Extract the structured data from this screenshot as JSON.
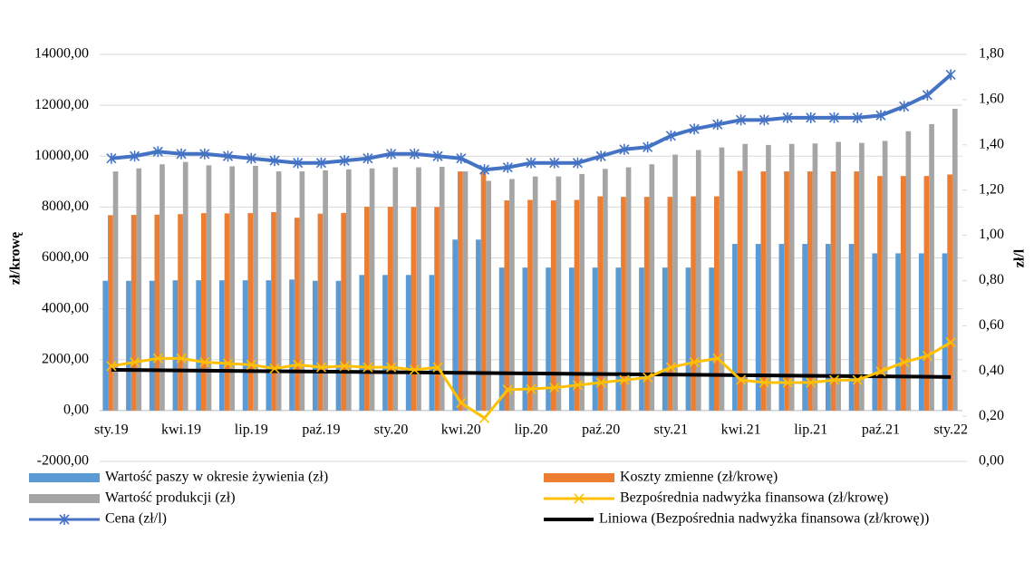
{
  "chart_data": {
    "type": "bar",
    "categories": [
      "sty.19",
      null,
      null,
      "kwi.19",
      null,
      null,
      "lip.19",
      null,
      null,
      "paź.19",
      null,
      null,
      "sty.20",
      null,
      null,
      "kwi.20",
      null,
      null,
      "lip.20",
      null,
      null,
      "paź.20",
      null,
      null,
      "sty.21",
      null,
      null,
      "kwi.21",
      null,
      null,
      "lip.21",
      null,
      null,
      "paź.21",
      null,
      null,
      "sty.22"
    ],
    "ylabel": "zł/krowę",
    "y2label": "zł/l",
    "ylim": [
      -2000,
      14000
    ],
    "yticks": [
      {
        "value": -2000,
        "label": "-2000,00"
      },
      {
        "value": 0,
        "label": "0,00"
      },
      {
        "value": 2000,
        "label": "2000,00"
      },
      {
        "value": 4000,
        "label": "4000,00"
      },
      {
        "value": 6000,
        "label": "6000,00"
      },
      {
        "value": 8000,
        "label": "8000,00"
      },
      {
        "value": 10000,
        "label": "10000,00"
      },
      {
        "value": 12000,
        "label": "12000,00"
      },
      {
        "value": 14000,
        "label": "14000,00"
      }
    ],
    "y2lim": [
      0,
      1.8
    ],
    "y2ticks": [
      {
        "value": 0,
        "label": "0,00"
      },
      {
        "value": 0.2,
        "label": "0,20"
      },
      {
        "value": 0.4,
        "label": "0,40"
      },
      {
        "value": 0.6,
        "label": "0,60"
      },
      {
        "value": 0.8,
        "label": "0,80"
      },
      {
        "value": 1.0,
        "label": "1,00"
      },
      {
        "value": 1.2,
        "label": "1,20"
      },
      {
        "value": 1.4,
        "label": "1,40"
      },
      {
        "value": 1.6,
        "label": "1,60"
      },
      {
        "value": 1.8,
        "label": "1,80"
      }
    ],
    "grid": true,
    "series": [
      {
        "name": "Wartość paszy w okresie żywienia (zł)",
        "color": "#5b9bd5",
        "kind": "bar",
        "values": [
          5100,
          5100,
          5100,
          5120,
          5120,
          5120,
          5120,
          5120,
          5150,
          5100,
          5100,
          5330,
          5330,
          5330,
          5330,
          6720,
          6720,
          5620,
          5620,
          5620,
          5620,
          5620,
          5620,
          5620,
          5620,
          5620,
          5620,
          6550,
          6550,
          6550,
          6550,
          6550,
          6550,
          6180,
          6180,
          6180,
          6180
        ]
      },
      {
        "name": "Koszty zmienne (zł/krowę)",
        "color": "#ed7d31",
        "kind": "bar",
        "values": [
          7680,
          7690,
          7700,
          7720,
          7760,
          7750,
          7760,
          7800,
          7580,
          7740,
          7770,
          8010,
          8010,
          8000,
          8000,
          9400,
          9400,
          8260,
          8280,
          8260,
          8280,
          8420,
          8400,
          8400,
          8400,
          8420,
          8420,
          9420,
          9400,
          9400,
          9400,
          9400,
          9400,
          9220,
          9220,
          9220,
          9280
        ]
      },
      {
        "name": "Wartość produkcji (zł)",
        "color": "#a5a5a5",
        "kind": "bar",
        "values": [
          9400,
          9520,
          9680,
          9770,
          9640,
          9600,
          9620,
          9400,
          9400,
          9440,
          9480,
          9520,
          9560,
          9560,
          9580,
          9400,
          9030,
          9100,
          9200,
          9200,
          9300,
          9500,
          9560,
          9680,
          10060,
          10240,
          10340,
          10480,
          10440,
          10480,
          10500,
          10560,
          10520,
          10600,
          10980,
          11260,
          11860
        ]
      },
      {
        "name": "Bezpośrednia nadwyżka finansowa (zł/krowę)",
        "color": "#ffc000",
        "kind": "line",
        "marker": "x",
        "values": [
          1750,
          1900,
          2050,
          2050,
          1900,
          1850,
          1800,
          1650,
          1800,
          1700,
          1750,
          1700,
          1700,
          1600,
          1700,
          300,
          -300,
          820,
          850,
          900,
          1000,
          1100,
          1200,
          1300,
          1700,
          1900,
          2050,
          1200,
          1100,
          1100,
          1100,
          1200,
          1200,
          1540,
          1900,
          2150,
          2680
        ]
      },
      {
        "name": "Cena (zł/l)",
        "color": "#4472c4",
        "kind": "line",
        "marker": "star",
        "axis": "y2",
        "values": [
          1.34,
          1.35,
          1.37,
          1.36,
          1.36,
          1.35,
          1.34,
          1.33,
          1.32,
          1.32,
          1.33,
          1.34,
          1.36,
          1.36,
          1.35,
          1.34,
          1.29,
          1.3,
          1.32,
          1.32,
          1.32,
          1.35,
          1.38,
          1.39,
          1.44,
          1.47,
          1.49,
          1.51,
          1.51,
          1.52,
          1.52,
          1.52,
          1.52,
          1.53,
          1.57,
          1.62,
          1.71
        ]
      }
    ],
    "trend": {
      "name": "Liniowa (Bezpośrednia nadwyżka finansowa (zł/krowę))",
      "color": "#000000",
      "start": 1600,
      "end": 1320
    }
  }
}
